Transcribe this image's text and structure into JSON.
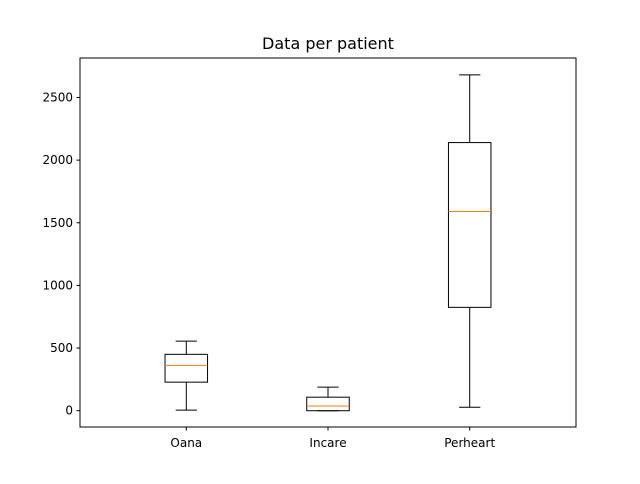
{
  "chart_data": {
    "type": "boxplot",
    "title": "Data per patient",
    "xlabel": "",
    "ylabel": "",
    "categories": [
      "Oana",
      "Incare",
      "Perheart"
    ],
    "boxes": [
      {
        "category": "Oana",
        "whisker_low": 5,
        "q1": 228,
        "median": 362,
        "q3": 450,
        "whisker_high": 555
      },
      {
        "category": "Incare",
        "whisker_low": 0,
        "q1": 0,
        "median": 38,
        "q3": 108,
        "whisker_high": 188
      },
      {
        "category": "Perheart",
        "whisker_low": 28,
        "q1": 825,
        "median": 1590,
        "q3": 2140,
        "whisker_high": 2680
      }
    ],
    "ylim": [
      -130,
      2815
    ],
    "yticks": [
      0,
      500,
      1000,
      1500,
      2000,
      2500
    ],
    "grid": false,
    "colors": {
      "box": "#000000",
      "median": "#ff7f0e",
      "axes": "#000000",
      "background": "#ffffff"
    }
  }
}
